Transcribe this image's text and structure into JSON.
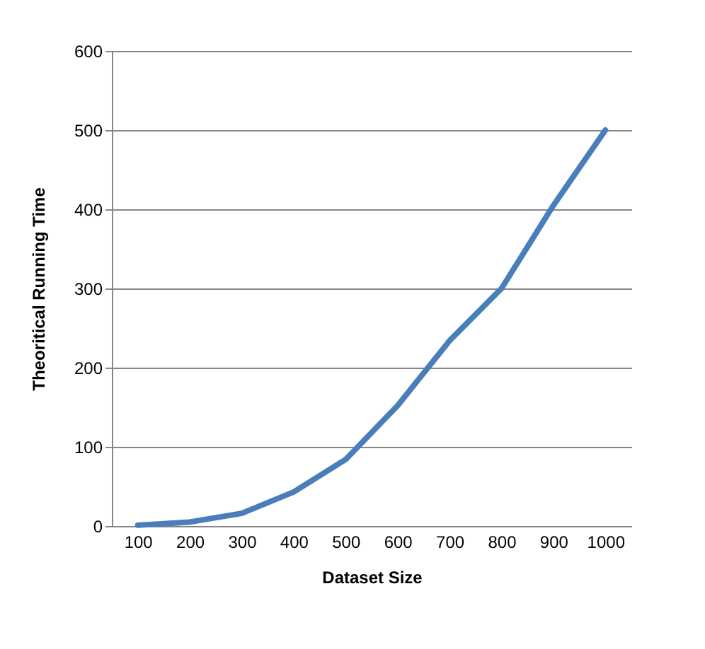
{
  "chart_data": {
    "type": "line",
    "xlabel": "Dataset Size",
    "ylabel": "Theoritical Running Time",
    "categories": [
      "100",
      "200",
      "300",
      "400",
      "500",
      "600",
      "700",
      "800",
      "900",
      "1000"
    ],
    "series": [
      {
        "color": "#4a7ebb",
        "values": [
          1,
          5,
          16,
          43,
          84,
          152,
          234,
          300,
          405,
          500
        ]
      }
    ],
    "ylim": [
      0,
      600
    ],
    "yticks": [
      0,
      100,
      200,
      300,
      400,
      500,
      600
    ],
    "grid": "y",
    "marker": "none",
    "line_style": "solid"
  }
}
